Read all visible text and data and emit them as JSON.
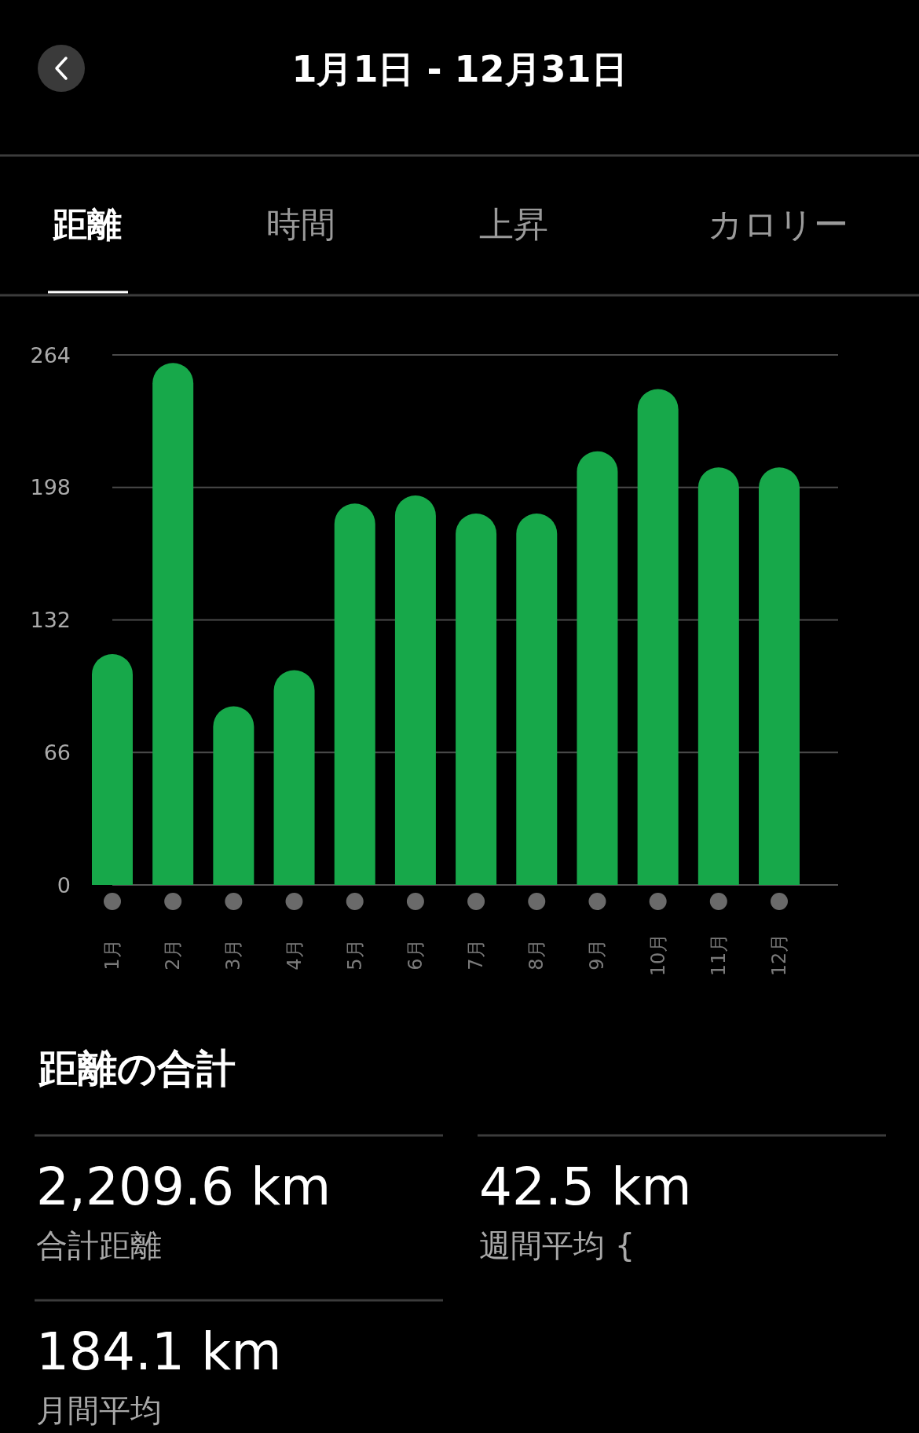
{
  "chart_data": [
    {
      "type": "bar",
      "title": "1月1日 - 12月31日",
      "annotations": [
        "距離",
        "時間",
        "上昇",
        "カロリー"
      ],
      "categories": [
        "1月",
        "2月",
        "3月",
        "4月",
        "5月",
        "6月",
        "7月",
        "8月",
        "9月",
        "10月",
        "11月",
        "12月"
      ],
      "values": [
        115,
        260,
        89,
        107,
        190,
        194,
        185,
        185,
        216,
        247,
        208,
        208
      ],
      "color": "#17a84a",
      "ylim": [
        0,
        264
      ],
      "yticks": [
        0,
        66,
        132,
        198,
        264
      ],
      "grid": "y"
    },
    {
      "type": "other",
      "title": "距離の合計",
      "annotations": [
        "2,209.6 km",
        "合計距離",
        "42.5 km",
        "週間平均 {",
        "184.1 km",
        "月間平均"
      ]
    }
  ]
}
